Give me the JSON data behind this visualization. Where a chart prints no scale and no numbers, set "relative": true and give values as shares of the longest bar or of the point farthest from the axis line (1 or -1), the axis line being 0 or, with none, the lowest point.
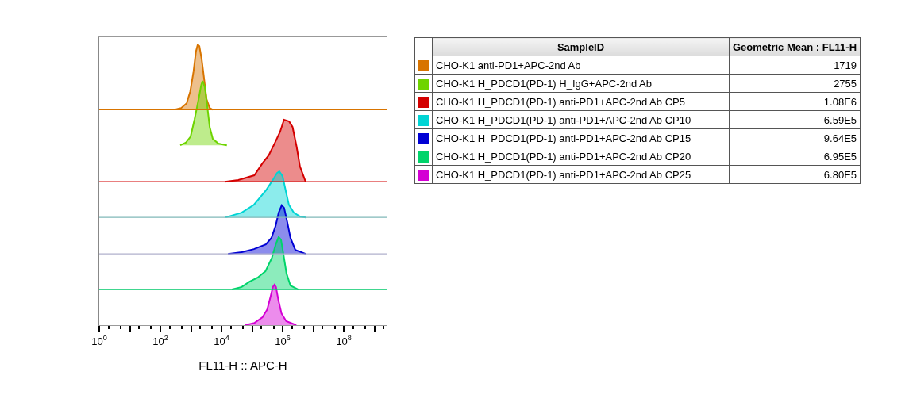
{
  "chart_data": [
    {
      "type": "area",
      "relative": true,
      "xlabel": "FL11-H :: APC-H",
      "log": "x",
      "grid": false,
      "xlim": [
        1,
        2500000000
      ],
      "xticks": [
        {
          "value": 1,
          "label": "10$^{0}$"
        },
        {
          "value": 10,
          "label": null
        },
        {
          "value": 100,
          "label": "10$^{2}$"
        },
        {
          "value": 1000,
          "label": null
        },
        {
          "value": 10000,
          "label": "10$^{4}$"
        },
        {
          "value": 100000,
          "label": null
        },
        {
          "value": 1000000,
          "label": "10$^{6}$"
        },
        {
          "value": 10000000,
          "label": null
        },
        {
          "value": 100000000,
          "label": "10$^{8}$"
        },
        {
          "value": 1000000000,
          "label": null
        }
      ],
      "ref_lines": [
        {
          "axis": "y",
          "value": 0.768,
          "color": "#d87400"
        },
        {
          "axis": "y",
          "value": 0.511,
          "color": "#d40000"
        },
        {
          "axis": "y",
          "value": 0.384,
          "color": "#80b8b8"
        },
        {
          "axis": "y",
          "value": 0.254,
          "color": "#b0b0cc"
        },
        {
          "axis": "y",
          "value": 0.127,
          "color": "#00c86a"
        }
      ],
      "series": [
        {
          "color": "#d87400",
          "x": [
            295,
            478,
            722,
            945,
            1210,
            1450,
            1660,
            1880,
            2250,
            2700,
            3230,
            4080,
            5150
          ],
          "values": [
            0.768,
            0.774,
            0.791,
            0.833,
            0.904,
            0.975,
            1.0,
            0.994,
            0.946,
            0.876,
            0.805,
            0.774,
            0.768
          ]
        },
        {
          "color": "#6ed400",
          "x": [
            445,
            672,
            969,
            1310,
            1770,
            2160,
            2390,
            2860,
            3430,
            4100,
            5150,
            7850,
            14900
          ],
          "values": [
            0.641,
            0.65,
            0.672,
            0.734,
            0.805,
            0.856,
            0.87,
            0.847,
            0.777,
            0.706,
            0.664,
            0.647,
            0.641
          ]
        },
        {
          "color": "#d40000",
          "x": [
            12800,
            35400,
            118000,
            215000,
            348000,
            539000,
            820000,
            1100000,
            1620000,
            2100000,
            2850000,
            3670000,
            5600000
          ],
          "values": [
            0.511,
            0.517,
            0.534,
            0.576,
            0.605,
            0.647,
            0.689,
            0.732,
            0.726,
            0.706,
            0.636,
            0.565,
            0.511
          ]
        },
        {
          "color": "#00d4d4",
          "x": [
            13500,
            45500,
            114000,
            281000,
            454000,
            651000,
            776000,
            987000,
            1250000,
            1590000,
            2290000,
            3700000,
            5650000
          ],
          "values": [
            0.384,
            0.401,
            0.429,
            0.48,
            0.514,
            0.542,
            0.548,
            0.531,
            0.48,
            0.429,
            0.401,
            0.387,
            0.384
          ]
        },
        {
          "color": "#0000d4",
          "x": [
            16200,
            45500,
            114000,
            281000,
            427000,
            581000,
            739000,
            930000,
            1110000,
            1410000,
            1790000,
            2580000,
            5650000
          ],
          "values": [
            0.254,
            0.26,
            0.271,
            0.288,
            0.311,
            0.353,
            0.401,
            0.427,
            0.418,
            0.367,
            0.311,
            0.268,
            0.254
          ]
        },
        {
          "color": "#00d46a",
          "x": [
            21900,
            45500,
            82400,
            150000,
            272000,
            442000,
            593000,
            735000,
            877000,
            1050000,
            1330000,
            1790000,
            3240000
          ],
          "values": [
            0.127,
            0.136,
            0.155,
            0.169,
            0.192,
            0.24,
            0.288,
            0.314,
            0.305,
            0.254,
            0.184,
            0.141,
            0.127
          ]
        },
        {
          "color": "#d400d4",
          "x": [
            58700,
            120000,
            218000,
            311000,
            394000,
            477000,
            535000,
            601000,
            719000,
            911000,
            1300000,
            2770000
          ],
          "values": [
            0.0,
            0.008,
            0.028,
            0.056,
            0.099,
            0.136,
            0.144,
            0.136,
            0.09,
            0.042,
            0.014,
            0.0
          ]
        }
      ]
    },
    {
      "type": "other",
      "annotations": [
        "SampleID",
        "Geometric Mean : FL11-H"
      ],
      "categories": [
        "CHO-K1 anti-PD1+APC-2nd Ab",
        "CHO-K1 H_PDCD1(PD-1) H_IgG+APC-2nd Ab",
        "CHO-K1 H_PDCD1(PD-1) anti-PD1+APC-2nd Ab CP5",
        "CHO-K1 H_PDCD1(PD-1) anti-PD1+APC-2nd Ab CP10",
        "CHO-K1 H_PDCD1(PD-1) anti-PD1+APC-2nd Ab CP15",
        "CHO-K1 H_PDCD1(PD-1) anti-PD1+APC-2nd Ab CP20",
        "CHO-K1 H_PDCD1(PD-1) anti-PD1+APC-2nd Ab CP25"
      ],
      "value_labels": [
        "1719",
        "2755",
        "1.08E6",
        "6.59E5",
        "9.64E5",
        "6.95E5",
        "6.80E5"
      ],
      "colors": [
        "#d87400",
        "#6ed400",
        "#d40000",
        "#00d4d4",
        "#0000d4",
        "#00d46a",
        "#d400d4"
      ]
    }
  ]
}
